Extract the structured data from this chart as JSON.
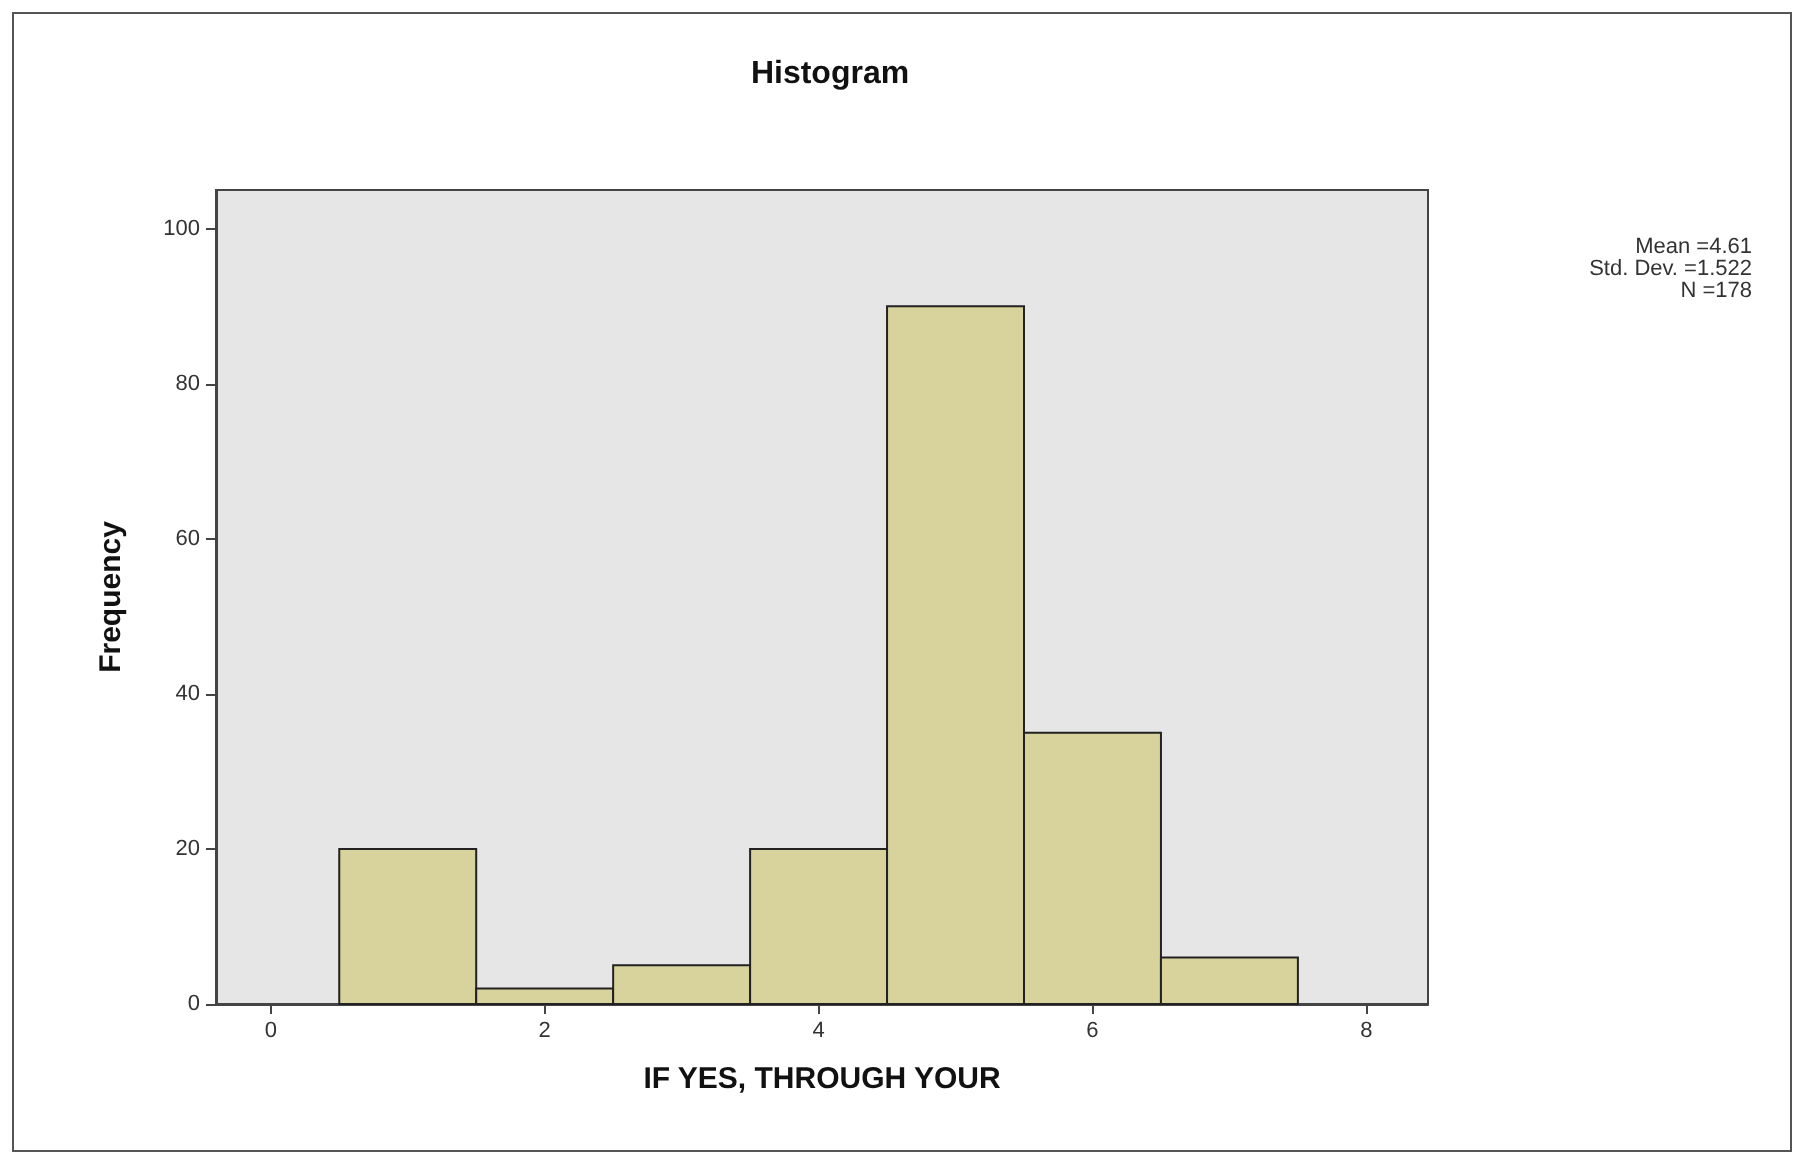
{
  "chart_data": {
    "type": "histogram",
    "title": "Histogram",
    "xlabel": "IF YES, THROUGH YOUR",
    "ylabel": "Frequency",
    "bins": [
      0.5,
      1.5,
      2.5,
      3.5,
      4.5,
      5.5,
      6.5,
      7.5
    ],
    "values": [
      20,
      2,
      5,
      20,
      90,
      35,
      6
    ],
    "color": "#d8d29c",
    "xlim": [
      -0.4,
      8.45
    ],
    "xticks": [
      0,
      2,
      4,
      6,
      8
    ],
    "ylim": [
      0,
      105
    ],
    "yticks": [
      0,
      20,
      40,
      60,
      80,
      100
    ],
    "grid": false,
    "annotations": [
      "Mean =4.61",
      "Std. Dev. =1.522",
      "N =178"
    ]
  }
}
